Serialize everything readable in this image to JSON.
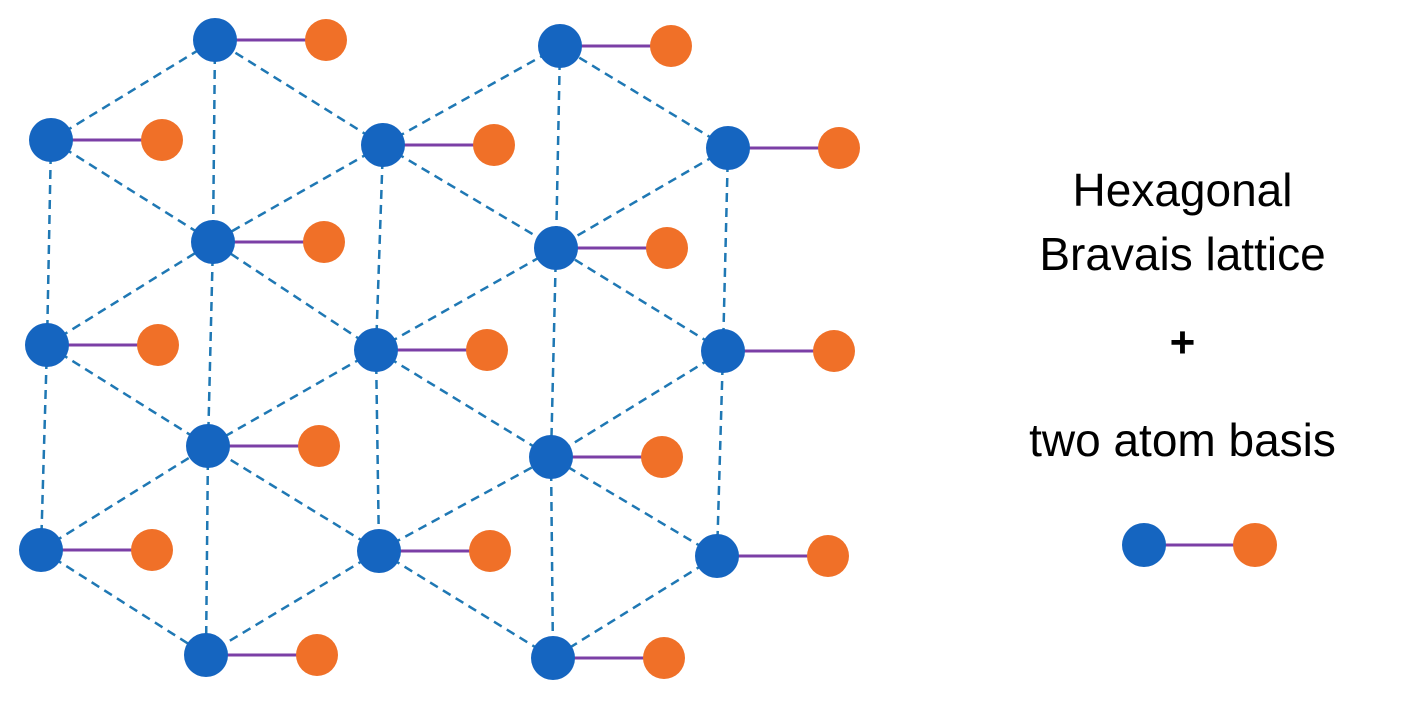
{
  "title": {
    "line1": "Hexagonal",
    "line2": "Bravais lattice"
  },
  "plus": "+",
  "basis_label": "two atom basis",
  "colors": {
    "lattice_atom": "#1565c0",
    "basis_atom": "#f07028",
    "bond": "#7b3fa6",
    "lattice_line": "#1f78b4"
  },
  "legend": {
    "atoms": [
      "blue-atom",
      "orange-atom"
    ]
  }
}
